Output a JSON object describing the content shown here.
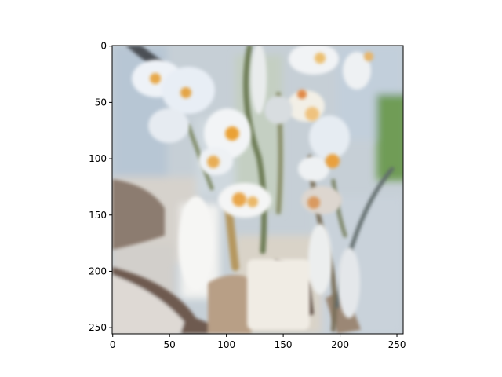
{
  "chart_data": {
    "type": "heatmap",
    "title": "",
    "xlabel": "",
    "ylabel": "",
    "image_size": [
      256,
      256
    ],
    "xlim": [
      -0.5,
      255.5
    ],
    "ylim": [
      255.5,
      -0.5
    ],
    "x_ticks": [
      0,
      50,
      100,
      150,
      200,
      250
    ],
    "y_ticks": [
      0,
      50,
      100,
      150,
      200,
      250
    ],
    "grid": false,
    "legend": "none",
    "image_description": "blurry painterly photo of white flowers with orange centers on green stems, pale blue-grey background"
  },
  "colors": {
    "background": "#ffffff",
    "axes_edge": "#000000",
    "petal_white": "#eef1f4",
    "flower_center": "#e9a640",
    "sky_blue": "#b9c9d9",
    "stem_green": "#8a9a62",
    "shadow_brown": "#6a5548"
  }
}
